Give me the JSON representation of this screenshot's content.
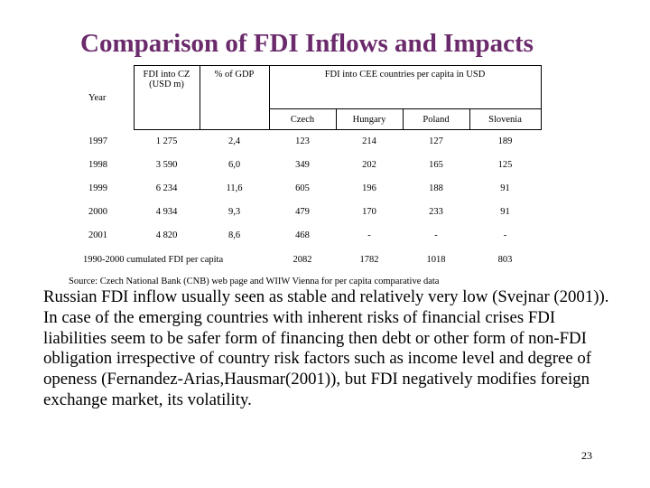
{
  "title": "Comparison of FDI Inflows and Impacts",
  "table": {
    "headers": {
      "year": "Year",
      "fdi_cz": "FDI into CZ (USD m)",
      "gdp": "% of GDP",
      "cee": "FDI into CEE countries per capita in USD"
    },
    "countries": [
      "Czech",
      "Hungary",
      "Poland",
      "Slovenia"
    ],
    "rows": [
      {
        "year": "1997",
        "fdi": "1 275",
        "gdp": "2,4",
        "cz": "123",
        "hu": "214",
        "pl": "127",
        "si": "189"
      },
      {
        "year": "1998",
        "fdi": "3 590",
        "gdp": "6,0",
        "cz": "349",
        "hu": "202",
        "pl": "165",
        "si": "125"
      },
      {
        "year": "1999",
        "fdi": "6 234",
        "gdp": "11,6",
        "cz": "605",
        "hu": "196",
        "pl": "188",
        "si": "91"
      },
      {
        "year": "2000",
        "fdi": "4 934",
        "gdp": "9,3",
        "cz": "479",
        "hu": "170",
        "pl": "233",
        "si": "91"
      },
      {
        "year": "2001",
        "fdi": "4 820",
        "gdp": "8,6",
        "cz": "468",
        "hu": "-",
        "pl": "-",
        "si": "-"
      }
    ],
    "cumulative": {
      "label": "1990-2000 cumulated FDI per capita",
      "cz": "2082",
      "hu": "1782",
      "pl": "1018",
      "si": "803"
    }
  },
  "source": "Source: Czech National Bank (CNB) web page and WIIW Vienna for per capita comparative data",
  "paragraphs": [
    "Russian FDI inflow usually seen as stable and relatively very low (Svejnar (2001)).",
    "In case of the emerging countries with inherent risks of financial crises FDI liabilities seem to be safer form of financing then debt or other form of non-FDI obligation irrespective of country risk factors such as income level and degree of openess (Fernandez-Arias,Hausmar(2001)), but FDI negatively modifies foreign exchange market, its volatility."
  ],
  "page_number": "23"
}
